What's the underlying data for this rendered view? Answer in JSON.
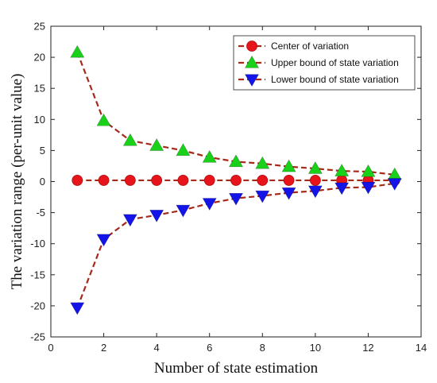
{
  "chart_data": {
    "type": "line",
    "xlabel": "Number of state estimation",
    "ylabel": "The variation range (per-unit value)",
    "xlim": [
      0,
      14
    ],
    "ylim": [
      -25,
      25
    ],
    "xticks": [
      0,
      2,
      4,
      6,
      8,
      10,
      12,
      14
    ],
    "yticks": [
      25,
      20,
      15,
      10,
      5,
      0,
      -5,
      -10,
      -15,
      -20,
      -25
    ],
    "grid": false,
    "legend_position": "top-right",
    "x": [
      1,
      2,
      3,
      4,
      5,
      6,
      7,
      8,
      9,
      10,
      11,
      12,
      13
    ],
    "series": [
      {
        "name": "Center of variation",
        "marker": "circle",
        "marker_color": "#e8141b",
        "line_color": "#a52a1a",
        "values": [
          0.2,
          0.2,
          0.2,
          0.2,
          0.2,
          0.2,
          0.2,
          0.2,
          0.2,
          0.2,
          0.2,
          0.2,
          0.2
        ]
      },
      {
        "name": "Upper bound of state variation",
        "marker": "triangle-up",
        "marker_color": "#19d119",
        "line_color": "#a52a1a",
        "values": [
          20.8,
          9.8,
          6.6,
          5.8,
          5.0,
          3.9,
          3.2,
          2.9,
          2.4,
          2.1,
          1.7,
          1.6,
          1.1
        ]
      },
      {
        "name": "Lower bound of state variation",
        "marker": "triangle-down",
        "marker_color": "#1414e8",
        "line_color": "#a52a1a",
        "values": [
          -20.3,
          -9.3,
          -6.1,
          -5.4,
          -4.6,
          -3.5,
          -2.7,
          -2.3,
          -1.8,
          -1.5,
          -1.0,
          -0.9,
          -0.3
        ]
      }
    ]
  }
}
